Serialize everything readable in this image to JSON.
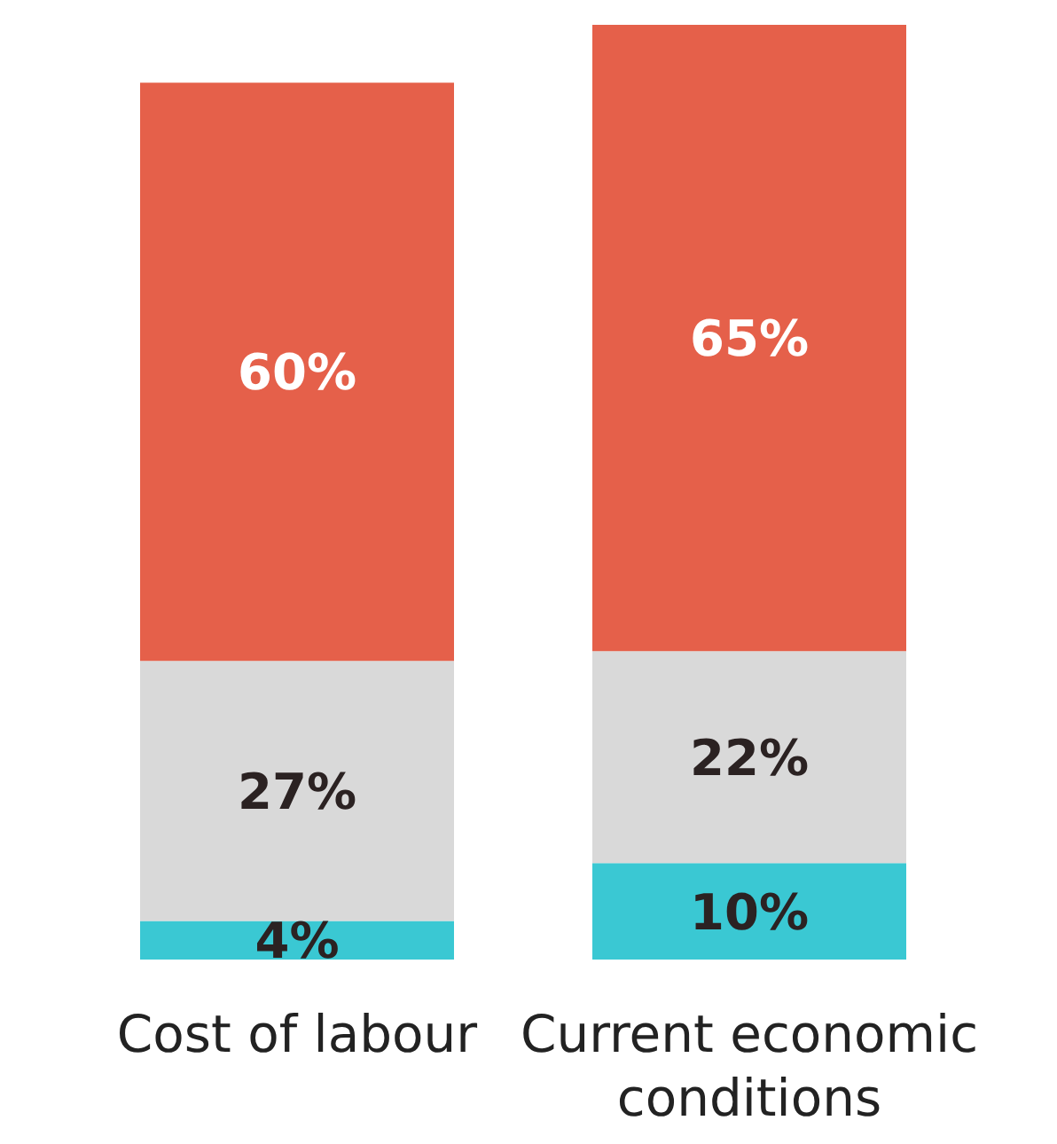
{
  "chart_data": {
    "type": "bar",
    "stacked": true,
    "categories": [
      "Cost of labour",
      "Current economic conditions"
    ],
    "series": [
      {
        "color": "#3ac8d3",
        "values": [
          4,
          10
        ],
        "value_labels": [
          "4%",
          "10%"
        ]
      },
      {
        "color": "#d9d9d9",
        "values": [
          27,
          22
        ],
        "value_labels": [
          "27%",
          "22%"
        ]
      },
      {
        "color": "#e5604a",
        "values": [
          60,
          65
        ],
        "value_labels": [
          "60%",
          "65%"
        ]
      }
    ],
    "tick_labels": "x",
    "grid": false
  }
}
